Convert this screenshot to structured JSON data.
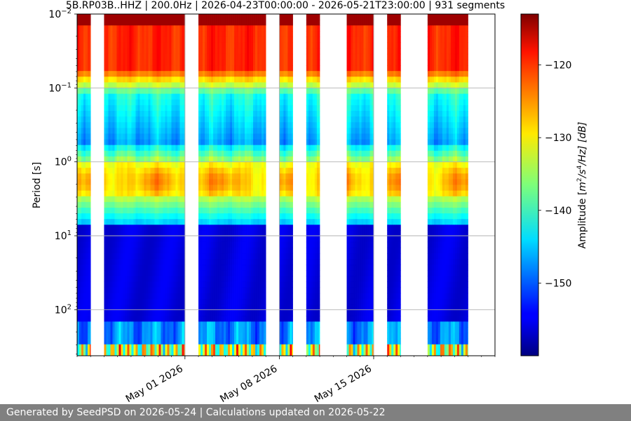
{
  "chart_data": {
    "type": "heatmap",
    "title": "5B.RP03B..HHZ | 200.0Hz | 2026-04-23T00:00:00 - 2026-05-21T23:00:00 | 931 segments",
    "ylabel": "Period [s]",
    "colorbar_label_main": "Amplitude [",
    "colorbar_label_unit": "m",
    "colorbar_label_sup1": "2",
    "colorbar_label_mid": "/s",
    "colorbar_label_sup2": "4",
    "colorbar_label_end": "/Hz] [dB]",
    "y_scale": "log",
    "y_inverted": true,
    "ylim_period_s": [
      0.01,
      420
    ],
    "y_ticks": [
      {
        "value": 0.01,
        "base": "10",
        "exp": "−2"
      },
      {
        "value": 0.1,
        "base": "10",
        "exp": "−1"
      },
      {
        "value": 1,
        "base": "10",
        "exp": "0"
      },
      {
        "value": 10,
        "base": "10",
        "exp": "1"
      },
      {
        "value": 100,
        "base": "10",
        "exp": "2"
      }
    ],
    "x_range_days": [
      "2026-04-23",
      "2026-05-24"
    ],
    "x_ticks": [
      {
        "date": "2026-05-01",
        "label": "May 01 2026"
      },
      {
        "date": "2026-05-08",
        "label": "May 08 2026"
      },
      {
        "date": "2026-05-15",
        "label": "May 15 2026"
      }
    ],
    "data_spans": [
      [
        "2026-04-23",
        "2026-04-24"
      ],
      [
        "2026-04-25",
        "2026-05-01"
      ],
      [
        "2026-05-02",
        "2026-05-07"
      ],
      [
        "2026-05-08",
        "2026-05-09"
      ],
      [
        "2026-05-10",
        "2026-05-11"
      ],
      [
        "2026-05-13",
        "2026-05-15"
      ],
      [
        "2026-05-16",
        "2026-05-17"
      ],
      [
        "2026-05-19",
        "2026-05-22"
      ]
    ],
    "color_range_db": [
      -160,
      -113
    ],
    "color_ticks_db": [
      -120,
      -130,
      -140,
      -150
    ],
    "colormap": "jet",
    "grid": true
  },
  "footer": {
    "text": "Generated by SeedPSD on 2026-05-24 | Calculations updated on 2026-05-22"
  }
}
